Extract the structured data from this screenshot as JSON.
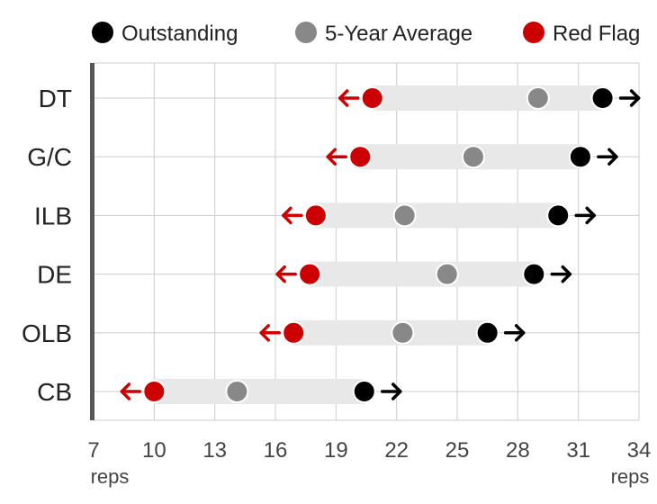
{
  "chart_data": {
    "type": "dot-range",
    "title": "",
    "x_unit_label": "reps",
    "xlim": [
      7,
      34
    ],
    "x_ticks": [
      7,
      10,
      13,
      16,
      19,
      22,
      25,
      28,
      31,
      34
    ],
    "grid": true,
    "legend": [
      {
        "key": "outstanding",
        "label": "Outstanding",
        "color": "#000000"
      },
      {
        "key": "average",
        "label": "5-Year Average",
        "color": "#888888"
      },
      {
        "key": "red_flag",
        "label": "Red Flag",
        "color": "#cc0000"
      }
    ],
    "legend_position": "top",
    "categories": [
      "DT",
      "G/C",
      "ILB",
      "DE",
      "OLB",
      "CB"
    ],
    "series": [
      {
        "name": "Red Flag",
        "key": "red_flag",
        "values": [
          20.8,
          20.2,
          18.0,
          17.7,
          16.9,
          10.0
        ]
      },
      {
        "name": "5-Year Average",
        "key": "average",
        "values": [
          29.0,
          25.8,
          22.4,
          24.5,
          22.3,
          14.1
        ]
      },
      {
        "name": "Outstanding",
        "key": "outstanding",
        "values": [
          32.2,
          31.1,
          30.0,
          28.8,
          26.5,
          20.4
        ]
      }
    ]
  }
}
